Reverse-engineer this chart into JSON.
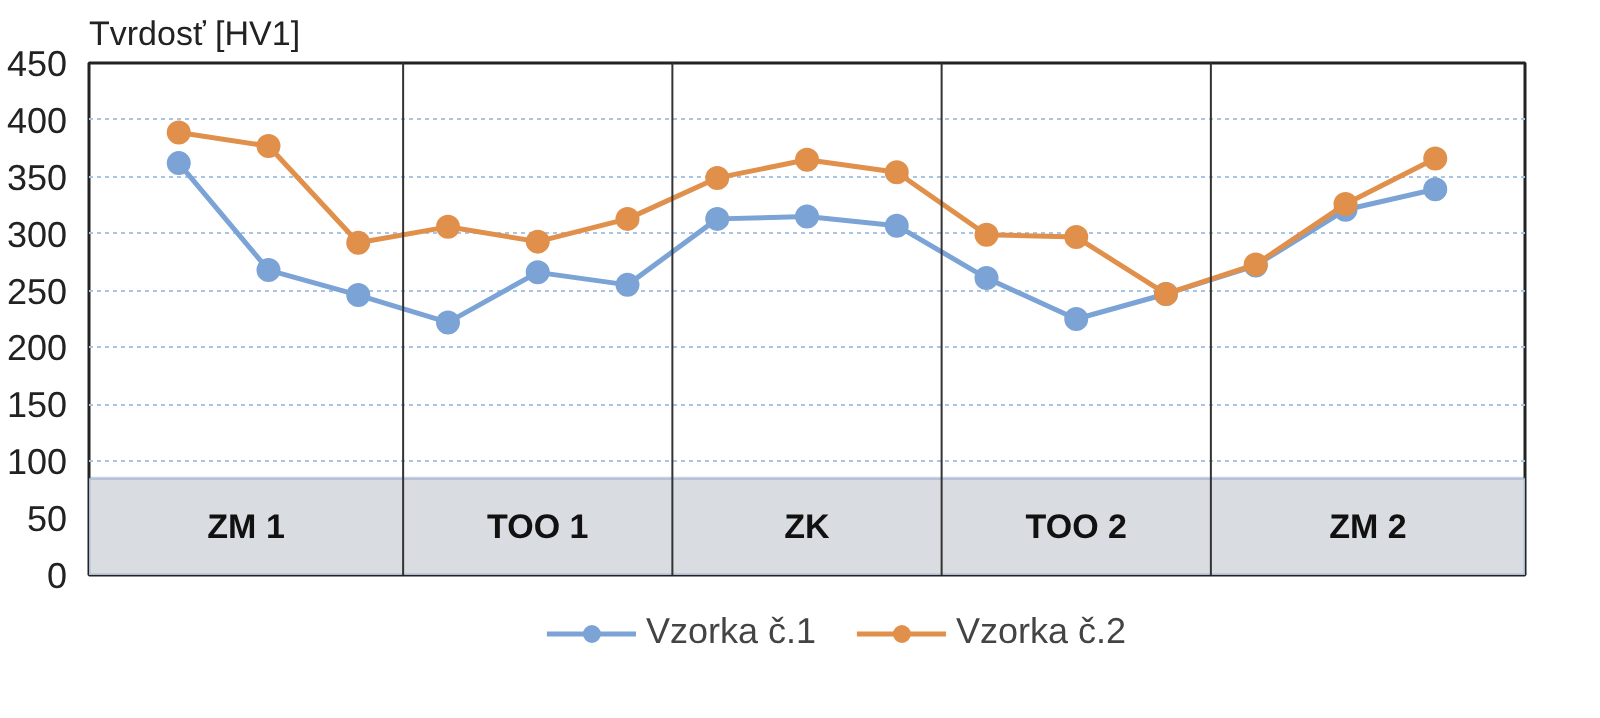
{
  "chart_data": {
    "type": "line",
    "ylabel": "Tvrdosť [HV1]",
    "categories": [
      null,
      null,
      null,
      null,
      null,
      null,
      null,
      null,
      null,
      null,
      null,
      null,
      null,
      null,
      null
    ],
    "series": [
      {
        "name": "Vzorka č.1",
        "color": "#7ba3d6",
        "values": [
          362,
          268,
          246,
          222,
          266,
          255,
          313,
          315,
          307,
          261,
          225,
          247,
          272,
          321,
          339
        ]
      },
      {
        "name": "Vzorka č.2",
        "color": "#e0904a",
        "values": [
          389,
          377,
          292,
          306,
          293,
          313,
          349,
          365,
          354,
          299,
          297,
          247,
          273,
          326,
          366
        ]
      }
    ],
    "ylim": [
      0,
      450
    ],
    "yticks": [
      0,
      50,
      100,
      150,
      200,
      250,
      300,
      350,
      400,
      450
    ],
    "tick_labels": "y",
    "grid": "y",
    "legend": "bottom",
    "marker": "circle",
    "line_style": "solid",
    "bands": [
      {
        "axis": "y",
        "from": 0,
        "to": 85,
        "color": "#d9dde1"
      }
    ],
    "annotations": [
      "ZM 1",
      "TOO 1",
      "ZK",
      "TOO 2",
      "ZM 2"
    ]
  }
}
